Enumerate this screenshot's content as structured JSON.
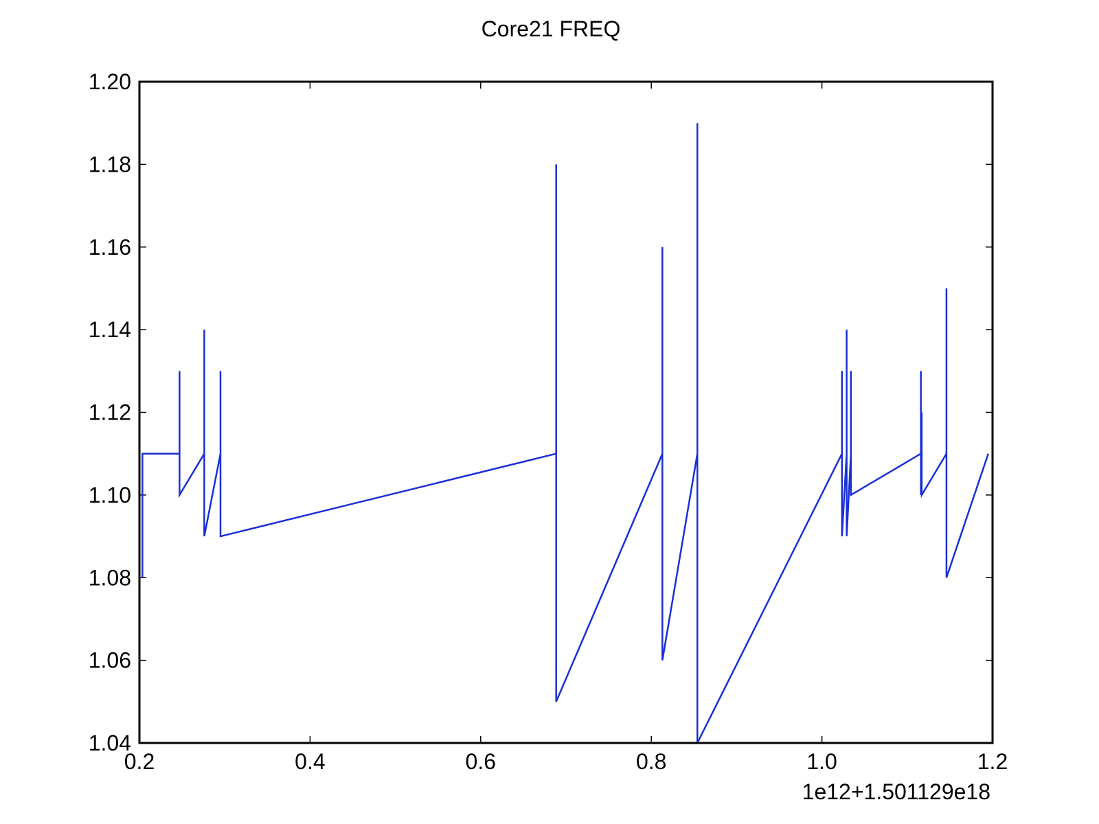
{
  "chart_data": {
    "type": "line",
    "title": "Core21 FREQ",
    "xlabel": "",
    "ylabel": "",
    "x_offset_label": "1e12+1.501129e18",
    "xlim": [
      0.2,
      1.2
    ],
    "ylim": [
      1.04,
      1.2
    ],
    "x_ticks": [
      0.2,
      0.4,
      0.6,
      0.8,
      1.0,
      1.2
    ],
    "x_tick_labels": [
      "0.2",
      "0.4",
      "0.6",
      "0.8",
      "1.0",
      "1.2"
    ],
    "y_ticks": [
      1.04,
      1.06,
      1.08,
      1.1,
      1.12,
      1.14,
      1.16,
      1.18,
      1.2
    ],
    "y_tick_labels": [
      "1.04",
      "1.06",
      "1.08",
      "1.10",
      "1.12",
      "1.14",
      "1.16",
      "1.18",
      "1.20"
    ],
    "grid": false,
    "legend": "none",
    "series": [
      {
        "color": "#1a2fd6",
        "x": [
          0.2035,
          0.2035,
          0.2045,
          0.2045,
          0.247,
          0.247,
          0.247,
          0.276,
          0.276,
          0.276,
          0.295,
          0.295,
          0.295,
          0.6885,
          0.6885,
          0.6885,
          0.813,
          0.813,
          0.813,
          0.854,
          0.854,
          0.854,
          1.0235,
          1.0235,
          1.0235,
          1.029,
          1.029,
          1.029,
          1.034,
          1.034,
          1.034,
          1.116,
          1.116,
          1.116,
          1.117,
          1.117,
          1.117,
          1.146,
          1.146,
          1.146,
          1.195
        ],
        "y": [
          1.08,
          1.11,
          1.11,
          1.11,
          1.11,
          1.13,
          1.1,
          1.11,
          1.14,
          1.09,
          1.11,
          1.13,
          1.09,
          1.11,
          1.18,
          1.05,
          1.11,
          1.16,
          1.06,
          1.11,
          1.19,
          1.04,
          1.11,
          1.13,
          1.09,
          1.11,
          1.14,
          1.09,
          1.11,
          1.13,
          1.1,
          1.11,
          1.13,
          1.1,
          1.11,
          1.12,
          1.1,
          1.11,
          1.15,
          1.08,
          1.11
        ]
      }
    ]
  }
}
